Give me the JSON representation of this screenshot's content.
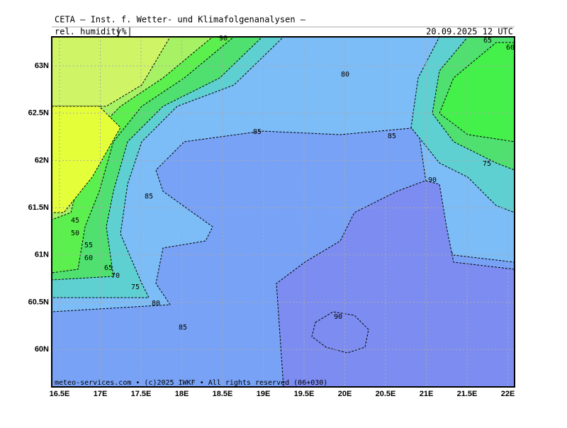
{
  "header": {
    "title": "CETA — Inst. f. Wetter- und Klimafolgenanalysen —",
    "variable": "rel. humidity",
    "unit": "%",
    "date": "20.09.2025 12 UTC"
  },
  "lon_labels": [
    "16.5E",
    "17E",
    "17.5E",
    "18E",
    "18.5E",
    "19E",
    "19.5E",
    "20E",
    "20.5E",
    "21E",
    "21.5E",
    "22E"
  ],
  "lat_labels": [
    "63N",
    "62.5N",
    "62N",
    "61.5N",
    "61N",
    "60.5N",
    "60N"
  ],
  "contour_labels": [
    "90",
    "80",
    "85",
    "85",
    "90",
    "75",
    "85",
    "45",
    "50",
    "55",
    "60",
    "65",
    "70",
    "75",
    "80",
    "85",
    "90",
    "65",
    "60"
  ],
  "footer": "meteo-services.com • (c)2025 IWKF • All rights reserved (06+030)"
}
